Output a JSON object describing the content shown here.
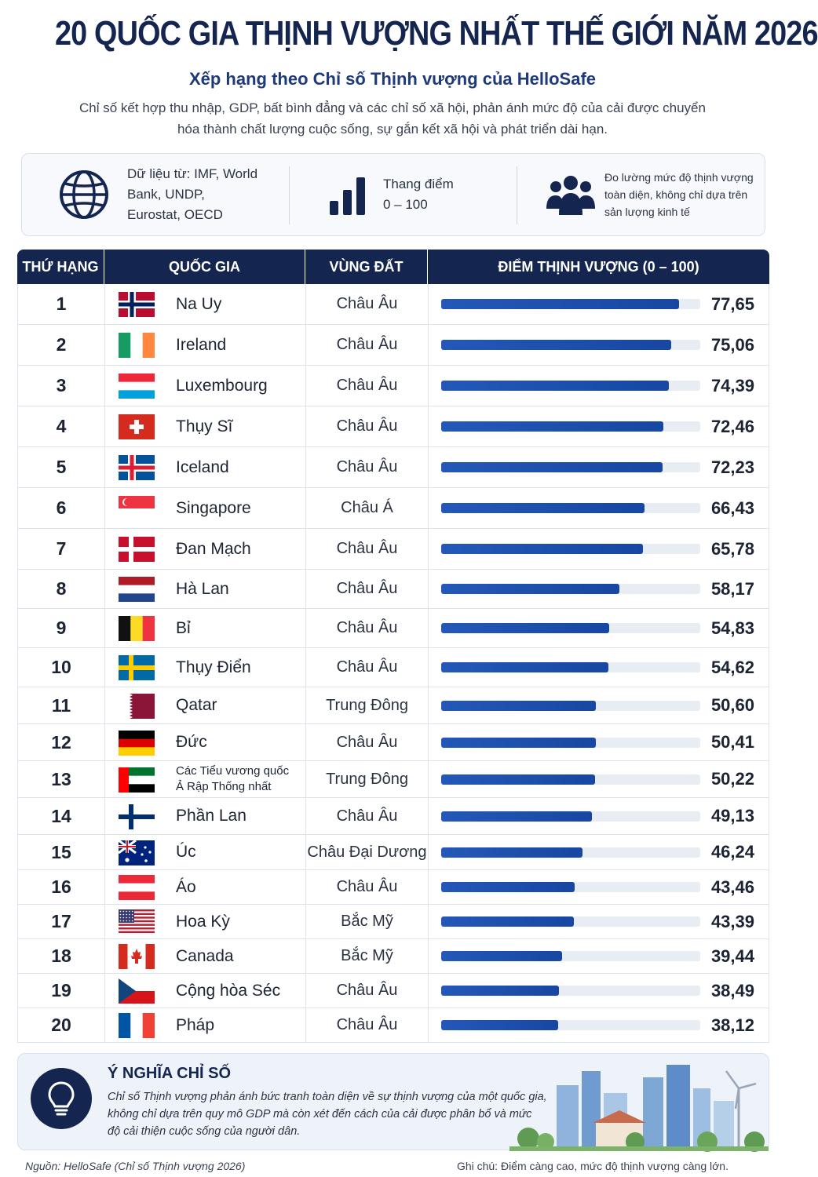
{
  "title": "20 QUỐC GIA THỊNH VƯỢNG NHẤT THẾ GIỚI NĂM 2026",
  "subtitle": "Xếp hạng theo Chỉ số Thịnh vượng của HelloSafe",
  "intro": "Chỉ số kết hợp thu nhập, GDP, bất bình đẳng và các chỉ số xã hội, phản ánh mức độ của cải được chuyển hóa thành chất lượng cuộc sống, sự gắn kết xã hội và phát triển dài hạn.",
  "info": {
    "sources": "Dữ liệu từ: IMF, World Bank, UNDP, Eurostat, OECD",
    "scale_label": "Thang điểm",
    "scale_range": "0 – 100",
    "measure": "Đo lường mức độ thịnh vượng toàn diện, không chỉ dựa trên sản lượng kinh tế"
  },
  "table": {
    "headers": [
      "THỨ HẠNG",
      "QUỐC GIA",
      "VÙNG ĐẤT",
      "ĐIỂM THỊNH VƯỢNG (0 – 100)"
    ]
  },
  "chart_data": {
    "type": "bar",
    "title": "20 QUỐC GIA THỊNH VƯỢNG NHẤT THẾ GIỚI NĂM 2026",
    "ylim": [
      0,
      100
    ],
    "rows": [
      {
        "rank": "1",
        "country": "Na Uy",
        "region": "Châu Âu",
        "value": 77.65,
        "label": "77,65",
        "flag": "norway"
      },
      {
        "rank": "2",
        "country": "Ireland",
        "region": "Châu Âu",
        "value": 75.06,
        "label": "75,06",
        "flag": "ireland"
      },
      {
        "rank": "3",
        "country": "Luxembourg",
        "region": "Châu Âu",
        "value": 74.39,
        "label": "74,39",
        "flag": "luxembourg"
      },
      {
        "rank": "4",
        "country": "Thụy Sĩ",
        "region": "Châu Âu",
        "value": 72.46,
        "label": "72,46",
        "flag": "switzerland"
      },
      {
        "rank": "5",
        "country": "Iceland",
        "region": "Châu Âu",
        "value": 72.23,
        "label": "72,23",
        "flag": "iceland"
      },
      {
        "rank": "6",
        "country": "Singapore",
        "region": "Châu Á",
        "value": 66.43,
        "label": "66,43",
        "flag": "singapore"
      },
      {
        "rank": "7",
        "country": "Đan Mạch",
        "region": "Châu Âu",
        "value": 65.78,
        "label": "65,78",
        "flag": "denmark"
      },
      {
        "rank": "8",
        "country": "Hà Lan",
        "region": "Châu Âu",
        "value": 58.17,
        "label": "58,17",
        "flag": "netherlands"
      },
      {
        "rank": "9",
        "country": "Bỉ",
        "region": "Châu Âu",
        "value": 54.83,
        "label": "54,83",
        "flag": "belgium"
      },
      {
        "rank": "10",
        "country": "Thụy Điển",
        "region": "Châu Âu",
        "value": 54.62,
        "label": "54,62",
        "flag": "sweden"
      },
      {
        "rank": "11",
        "country": "Qatar",
        "region": "Trung Đông",
        "value": 50.6,
        "label": "50,60",
        "flag": "qatar"
      },
      {
        "rank": "12",
        "country": "Đức",
        "region": "Châu Âu",
        "value": 50.41,
        "label": "50,41",
        "flag": "germany"
      },
      {
        "rank": "13",
        "country": "Các Tiểu vương quốc Ả Rập Thống nhất",
        "region": "Trung Đông",
        "value": 50.22,
        "label": "50,22",
        "flag": "uae"
      },
      {
        "rank": "14",
        "country": "Phần Lan",
        "region": "Châu Âu",
        "value": 49.13,
        "label": "49,13",
        "flag": "finland"
      },
      {
        "rank": "15",
        "country": "Úc",
        "region": "Châu Đại Dương",
        "value": 46.24,
        "label": "46,24",
        "flag": "australia"
      },
      {
        "rank": "16",
        "country": "Áo",
        "region": "Châu Âu",
        "value": 43.46,
        "label": "43,46",
        "flag": "austria"
      },
      {
        "rank": "17",
        "country": "Hoa Kỳ",
        "region": "Bắc Mỹ",
        "value": 43.39,
        "label": "43,39",
        "flag": "usa"
      },
      {
        "rank": "18",
        "country": "Canada",
        "region": "Bắc Mỹ",
        "value": 39.44,
        "label": "39,44",
        "flag": "canada"
      },
      {
        "rank": "19",
        "country": "Cộng hòa Séc",
        "region": "Châu Âu",
        "value": 38.49,
        "label": "38,49",
        "flag": "czech"
      },
      {
        "rank": "20",
        "country": "Pháp",
        "region": "Châu Âu",
        "value": 38.12,
        "label": "38,12",
        "flag": "france"
      }
    ]
  },
  "meaning": {
    "title": "Ý NGHĨA CHỈ SỐ",
    "text": "Chỉ số Thịnh vượng phản ánh bức tranh toàn diện về sự thịnh vượng của một quốc gia, không chỉ dựa trên quy mô GDP mà còn xét đến cách của cải được phân bổ và mức độ cải thiện cuộc sống của người dân."
  },
  "footer": {
    "source": "Nguồn: HelloSafe (Chỉ số Thịnh vượng 2026)",
    "note": "Ghi chú: Điểm càng cao, mức độ thịnh vượng càng lớn."
  },
  "colors": {
    "navy": "#14254f",
    "bar": "#1747a3",
    "track": "#e8ecf3"
  }
}
